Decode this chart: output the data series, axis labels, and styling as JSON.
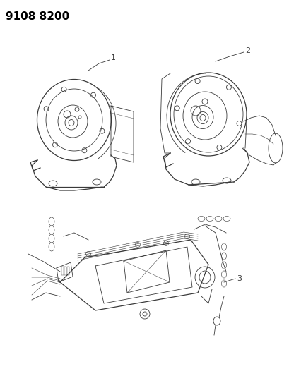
{
  "title": "9108 8200",
  "background_color": "#ffffff",
  "line_color": "#3a3a3a",
  "label_color": "#000000",
  "fig_width": 4.1,
  "fig_height": 5.33,
  "dpi": 100,
  "label1": "1",
  "label2": "2",
  "label3": "3"
}
